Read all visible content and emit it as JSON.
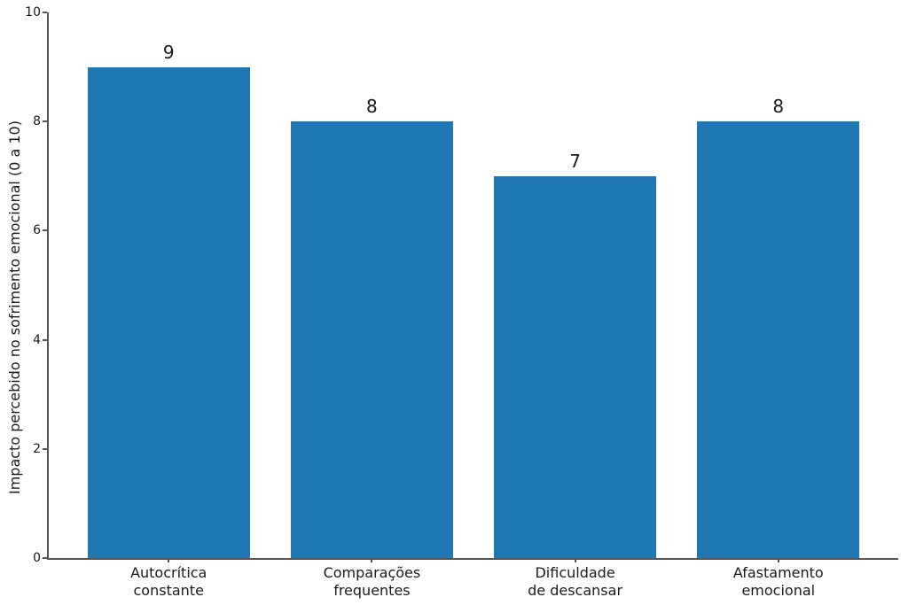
{
  "chart_data": {
    "type": "bar",
    "categories": [
      "Autocrítica\nconstante",
      "Comparações\nfrequentes",
      "Dificuldade\nde descansar",
      "Afastamento\nemocional"
    ],
    "values": [
      9,
      8,
      7,
      8
    ],
    "bar_value_labels": [
      "9",
      "8",
      "7",
      "8"
    ],
    "ylabel": "Impacto percebido no sofrimento emocional (0 a 10)",
    "ylim": [
      0,
      10
    ],
    "yticks": [
      0,
      2,
      4,
      6,
      8,
      10
    ],
    "grid": false,
    "bar_color": "#1f77b4",
    "axis_color": "#555555",
    "text_color": "#1a1a1a"
  }
}
